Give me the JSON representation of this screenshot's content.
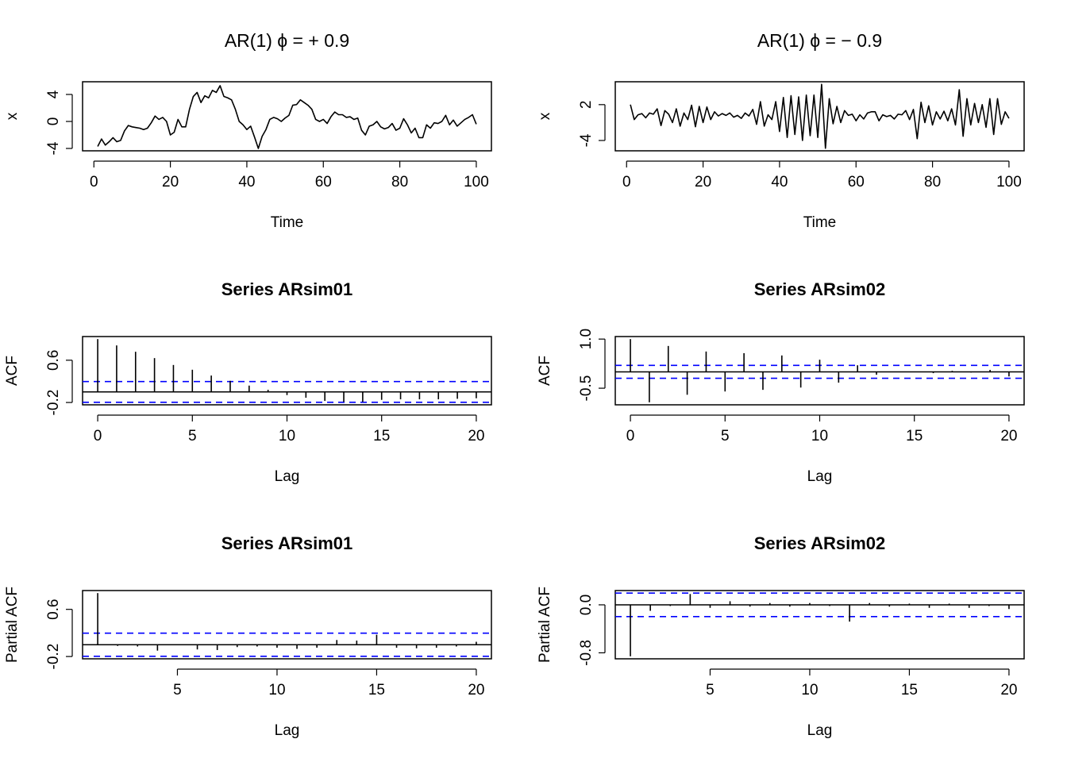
{
  "chart_data": [
    {
      "type": "line",
      "title": "AR(1)   ϕ = + 0.9",
      "xlabel": "Time",
      "ylabel": "x",
      "color": "#000000",
      "x": [
        1,
        2,
        3,
        4,
        5,
        6,
        7,
        8,
        9,
        10,
        11,
        12,
        13,
        14,
        15,
        16,
        17,
        18,
        19,
        20,
        21,
        22,
        23,
        24,
        25,
        26,
        27,
        28,
        29,
        30,
        31,
        32,
        33,
        34,
        35,
        36,
        37,
        38,
        39,
        40,
        41,
        42,
        43,
        44,
        45,
        46,
        47,
        48,
        49,
        50,
        51,
        52,
        53,
        54,
        55,
        56,
        57,
        58,
        59,
        60,
        61,
        62,
        63,
        64,
        65,
        66,
        67,
        68,
        69,
        70,
        71,
        72,
        73,
        74,
        75,
        76,
        77,
        78,
        79,
        80,
        81,
        82,
        83,
        84,
        85,
        86,
        87,
        88,
        89,
        90,
        91,
        92,
        93,
        94,
        95,
        96,
        97,
        98,
        99,
        100
      ],
      "values": [
        -3.7,
        -2.6,
        -3.5,
        -3.0,
        -2.4,
        -3.0,
        -2.8,
        -1.4,
        -0.6,
        -0.8,
        -0.9,
        -1.0,
        -1.2,
        -1.0,
        -0.2,
        0.8,
        0.3,
        0.6,
        0.0,
        -2.0,
        -1.6,
        0.3,
        -0.8,
        -0.8,
        1.8,
        3.7,
        4.3,
        2.8,
        3.8,
        3.5,
        4.6,
        4.3,
        5.3,
        3.7,
        3.5,
        3.2,
        1.8,
        0.0,
        -0.5,
        -1.2,
        -0.7,
        -2.3,
        -4.0,
        -2.2,
        -1.2,
        0.3,
        0.6,
        0.4,
        0.0,
        0.5,
        0.9,
        2.4,
        2.5,
        3.2,
        2.8,
        2.4,
        1.8,
        0.3,
        0.0,
        0.3,
        -0.3,
        0.7,
        1.4,
        1.0,
        1.0,
        0.6,
        0.7,
        0.3,
        0.5,
        -1.3,
        -2.0,
        -0.7,
        -0.5,
        0.0,
        -0.8,
        -1.1,
        -0.9,
        -0.3,
        -1.3,
        -1.0,
        0.4,
        -0.5,
        -1.7,
        -1.0,
        -2.4,
        -2.4,
        -0.5,
        -1.0,
        -0.2,
        -0.3,
        0.0,
        0.9,
        -0.5,
        0.2,
        -0.7,
        -0.2,
        0.3,
        0.6,
        1.0,
        -0.4
      ],
      "xlim": [
        -2.96,
        103.96
      ],
      "xticks": [
        0,
        20,
        40,
        60,
        80,
        100
      ],
      "ylim": [
        -4.35,
        5.88
      ],
      "yticks": [
        -4,
        0,
        4
      ]
    },
    {
      "type": "line",
      "title": "AR(1)   ϕ = − 0.9",
      "xlabel": "Time",
      "ylabel": "x",
      "color": "#000000",
      "x": [
        1,
        2,
        3,
        4,
        5,
        6,
        7,
        8,
        9,
        10,
        11,
        12,
        13,
        14,
        15,
        16,
        17,
        18,
        19,
        20,
        21,
        22,
        23,
        24,
        25,
        26,
        27,
        28,
        29,
        30,
        31,
        32,
        33,
        34,
        35,
        36,
        37,
        38,
        39,
        40,
        41,
        42,
        43,
        44,
        45,
        46,
        47,
        48,
        49,
        50,
        51,
        52,
        53,
        54,
        55,
        56,
        57,
        58,
        59,
        60,
        61,
        62,
        63,
        64,
        65,
        66,
        67,
        68,
        69,
        70,
        71,
        72,
        73,
        74,
        75,
        76,
        77,
        78,
        79,
        80,
        81,
        82,
        83,
        84,
        85,
        86,
        87,
        88,
        89,
        90,
        91,
        92,
        93,
        94,
        95,
        96,
        97,
        98,
        99,
        100
      ],
      "values": [
        2.0,
        -0.5,
        0.3,
        0.5,
        -0.2,
        0.6,
        0.4,
        1.3,
        -1.5,
        1.0,
        0.4,
        -1.0,
        1.3,
        -1.6,
        0.6,
        -0.5,
        1.9,
        -1.7,
        1.7,
        -1.0,
        1.6,
        -0.5,
        0.8,
        0.1,
        0.5,
        0.2,
        0.6,
        -0.1,
        0.2,
        -0.3,
        0.6,
        0.1,
        1.2,
        -1.3,
        2.5,
        -1.6,
        0.3,
        -0.5,
        2.5,
        -2.5,
        3.2,
        -3.5,
        3.5,
        -3.0,
        3.3,
        -4.0,
        3.6,
        -3.2,
        3.6,
        -3.5,
        5.4,
        -5.3,
        3.0,
        -1.2,
        1.7,
        -1.0,
        1.0,
        0.2,
        0.4,
        -0.7,
        0.3,
        -0.4,
        0.6,
        0.8,
        0.8,
        -0.7,
        0.3,
        0.0,
        0.2,
        -0.4,
        0.4,
        0.3,
        1.0,
        -0.5,
        1.2,
        -3.7,
        2.4,
        -1.0,
        1.8,
        -1.4,
        0.8,
        -0.4,
        0.9,
        -0.7,
        1.3,
        -1.4,
        4.5,
        -3.3,
        3.0,
        -1.4,
        2.2,
        -1.0,
        2.0,
        -1.8,
        3.0,
        -3.0,
        3.0,
        -1.3,
        0.8,
        -0.3
      ],
      "xlim": [
        -2.96,
        103.96
      ],
      "xticks": [
        0,
        20,
        40,
        60,
        80,
        100
      ],
      "ylim": [
        -5.73,
        5.83
      ],
      "yticks": [
        -4,
        2
      ]
    },
    {
      "type": "acf",
      "title": "Series  ARsim01",
      "xlabel": "Lag",
      "ylabel": "ACF",
      "color": "#000000",
      "ci_color": "#0000ff",
      "x": [
        0,
        1,
        2,
        3,
        4,
        5,
        6,
        7,
        8,
        9,
        10,
        11,
        12,
        13,
        14,
        15,
        16,
        17,
        18,
        19,
        20
      ],
      "values": [
        1.0,
        0.88,
        0.76,
        0.64,
        0.51,
        0.42,
        0.31,
        0.21,
        0.12,
        0.04,
        -0.06,
        -0.11,
        -0.17,
        -0.19,
        -0.19,
        -0.15,
        -0.14,
        -0.14,
        -0.14,
        -0.13,
        -0.12
      ],
      "ci_lines": [
        -0.196,
        0.196
      ],
      "xlim": [
        -0.8,
        20.8
      ],
      "xticks": [
        0,
        5,
        10,
        15,
        20
      ],
      "ylim": [
        -0.244,
        1.048
      ],
      "yticks": [
        -0.2,
        0.6
      ]
    },
    {
      "type": "acf",
      "title": "Series  ARsim02",
      "xlabel": "Lag",
      "ylabel": "ACF",
      "color": "#000000",
      "ci_color": "#0000ff",
      "x": [
        0,
        1,
        2,
        3,
        4,
        5,
        6,
        7,
        8,
        9,
        10,
        11,
        12,
        13,
        14,
        15,
        16,
        17,
        18,
        19,
        20
      ],
      "values": [
        1.0,
        -0.93,
        0.79,
        -0.7,
        0.62,
        -0.6,
        0.57,
        -0.55,
        0.5,
        -0.48,
        0.37,
        -0.33,
        0.2,
        -0.09,
        0.01,
        -0.01,
        -0.04,
        0.03,
        -0.02,
        0.06,
        -0.14
      ],
      "ci_lines": [
        -0.196,
        0.196
      ],
      "xlim": [
        -0.8,
        20.8
      ],
      "xticks": [
        0,
        5,
        10,
        15,
        20
      ],
      "ylim": [
        -1.007,
        1.077
      ],
      "yticks": [
        -0.5,
        {
          "value": 1,
          "label": "1.0"
        }
      ]
    },
    {
      "type": "acf",
      "title": "Series  ARsim01",
      "xlabel": "Lag",
      "ylabel": "Partial ACF",
      "color": "#000000",
      "ci_color": "#0000ff",
      "x": [
        1,
        2,
        3,
        4,
        5,
        6,
        7,
        8,
        9,
        10,
        11,
        12,
        13,
        14,
        15,
        16,
        17,
        18,
        19,
        20
      ],
      "values": [
        0.876,
        -0.02,
        -0.03,
        -0.1,
        -0.01,
        -0.08,
        -0.09,
        -0.04,
        -0.03,
        -0.05,
        -0.07,
        -0.05,
        0.08,
        0.07,
        0.17,
        -0.05,
        -0.06,
        -0.05,
        -0.03,
        0.05
      ],
      "ci_lines": [
        -0.196,
        0.196
      ],
      "xlim": [
        0.24,
        20.76
      ],
      "xticks": [
        5,
        10,
        15,
        20
      ],
      "ylim": [
        -0.239,
        0.919
      ],
      "yticks": [
        -0.2,
        0.6
      ]
    },
    {
      "type": "acf",
      "title": "Series  ARsim02",
      "xlabel": "Lag",
      "ylabel": "Partial ACF",
      "color": "#000000",
      "ci_color": "#0000ff",
      "x": [
        1,
        2,
        3,
        4,
        5,
        6,
        7,
        8,
        9,
        10,
        11,
        12,
        13,
        14,
        15,
        16,
        17,
        18,
        19,
        20
      ],
      "values": [
        -0.858,
        -0.1,
        -0.02,
        0.18,
        -0.05,
        0.06,
        -0.03,
        0.03,
        -0.03,
        0.03,
        -0.02,
        -0.28,
        0.03,
        -0.03,
        0.02,
        -0.05,
        0.02,
        -0.05,
        -0.02,
        -0.07
      ],
      "ci_lines": [
        -0.196,
        0.196
      ],
      "xlim": [
        0.24,
        20.76
      ],
      "xticks": [
        5,
        10,
        15,
        20
      ],
      "ylim": [
        -0.9,
        0.238
      ],
      "yticks": [
        -0.8,
        {
          "value": 0,
          "label": "0.0"
        }
      ]
    }
  ]
}
